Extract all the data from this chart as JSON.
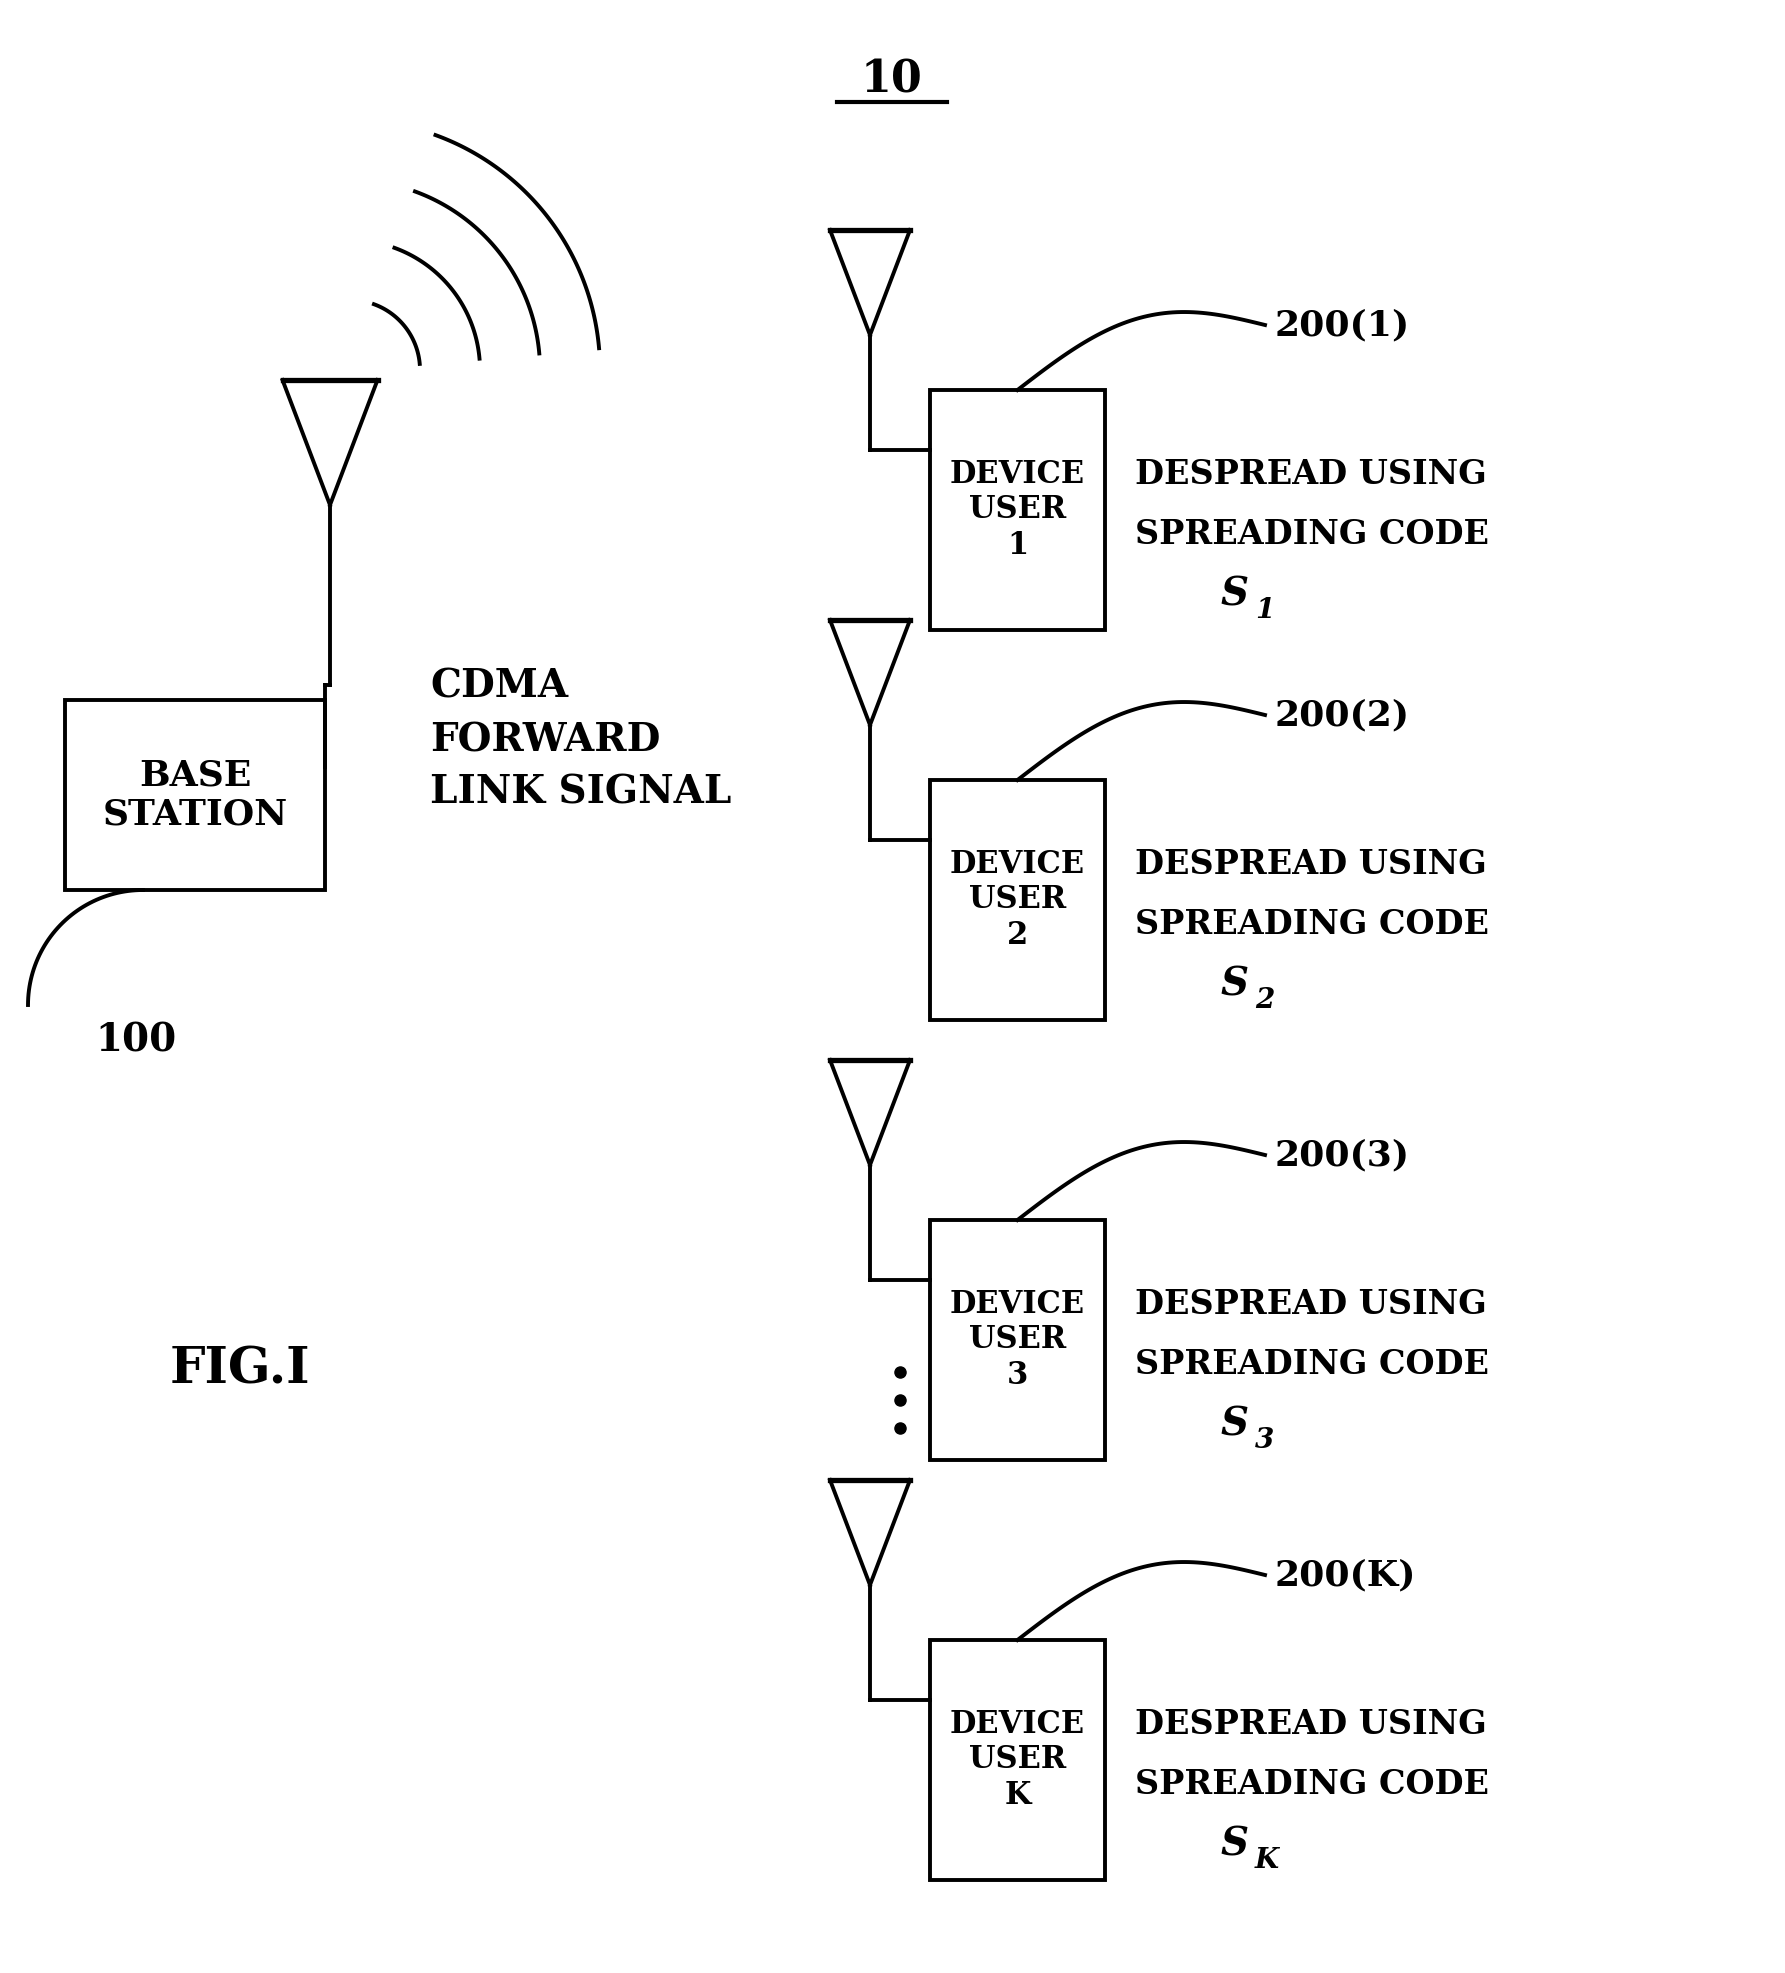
{
  "title": "10",
  "bg_color": "#ffffff",
  "fig_label": "FIG.I",
  "base_station_label": "BASE\nSTATION",
  "base_station_ref": "100",
  "cdma_label": "CDMA\nFORWARD\nLINK SIGNAL",
  "devices": [
    {
      "label": "DEVICE\nUSER\n1",
      "ref": "200(1)",
      "subscript": "1"
    },
    {
      "label": "DEVICE\nUSER\n2",
      "ref": "200(2)",
      "subscript": "2"
    },
    {
      "label": "DEVICE\nUSER\n3",
      "ref": "200(3)",
      "subscript": "3"
    },
    {
      "label": "DEVICE\nUSER\nK",
      "ref": "200(K)",
      "subscript": "K"
    }
  ],
  "despread_line1": "DESPREAD USING",
  "despread_line2": "SPREADING CODE"
}
